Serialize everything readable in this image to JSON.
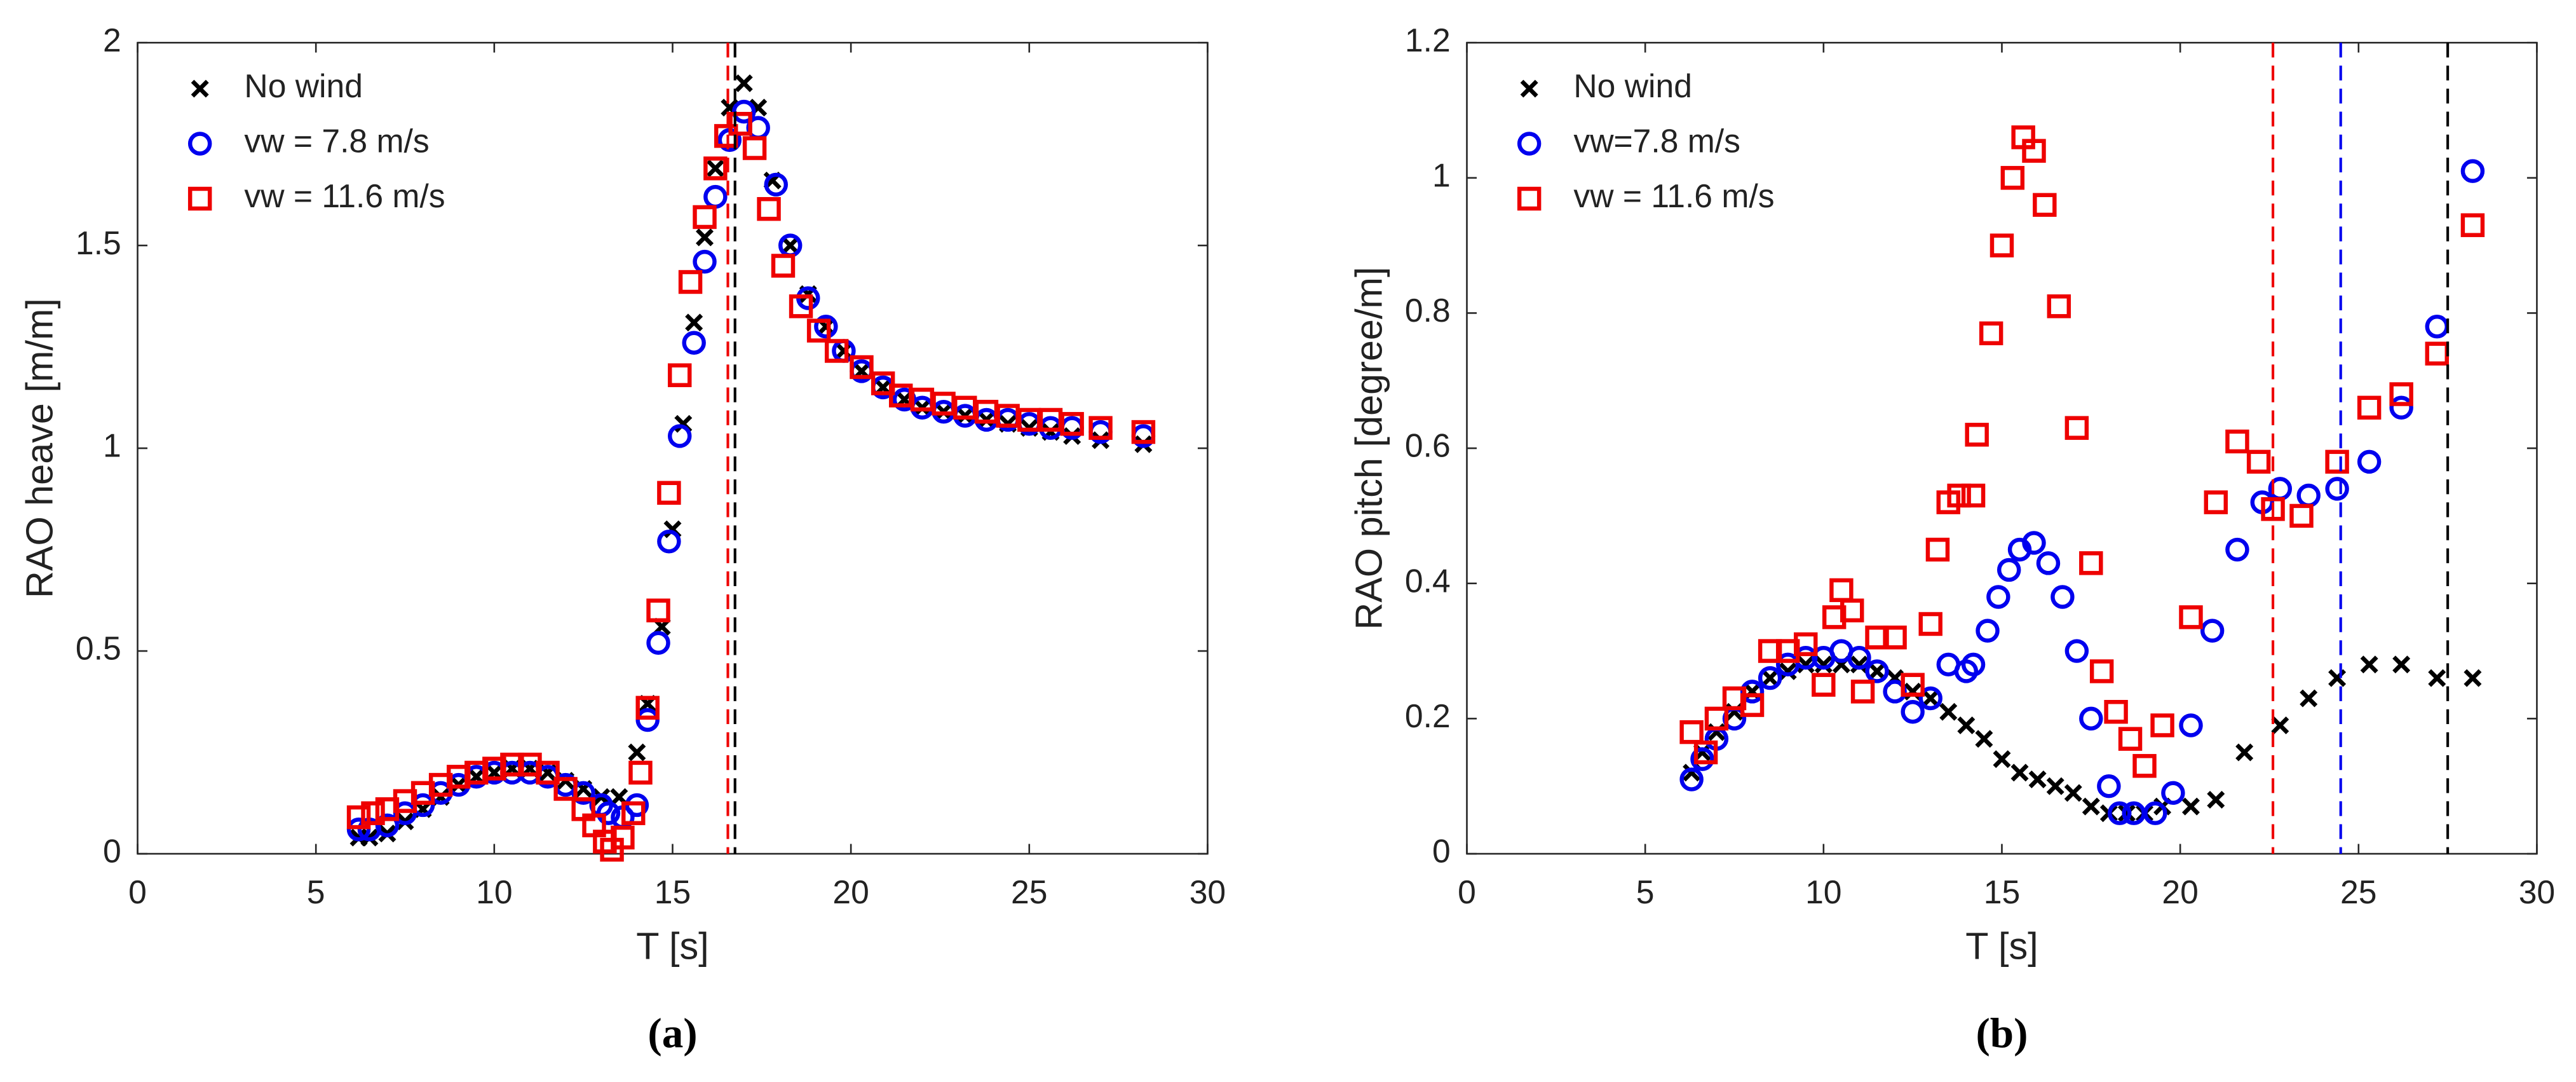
{
  "chart_data": [
    {
      "type": "scatter",
      "caption": "(a)",
      "x_label": "T [s]",
      "y_label": "RAO heave [m/m]",
      "xlim": [
        0,
        30
      ],
      "xticks": [
        0,
        5,
        10,
        15,
        20,
        25,
        30
      ],
      "ylim": [
        0,
        2
      ],
      "yticks": [
        0,
        0.5,
        1,
        1.5,
        2
      ],
      "legend": "upper-left",
      "series": [
        {
          "name": "No wind",
          "color": "#000000",
          "marker": "x",
          "x": [
            6.2,
            6.5,
            7,
            7.5,
            8,
            8.5,
            9,
            9.5,
            10,
            10.5,
            11,
            11.5,
            12,
            12.5,
            13,
            13.5,
            14,
            14.3,
            14.7,
            15,
            15.3,
            15.6,
            15.9,
            16.2,
            16.6,
            17,
            17.4,
            17.8,
            18.3,
            18.8,
            19.3,
            19.8,
            20.3,
            20.9,
            21.5,
            22,
            22.6,
            23.2,
            23.8,
            24.4,
            25,
            25.6,
            26.2,
            27,
            28.2
          ],
          "values": [
            0.04,
            0.04,
            0.05,
            0.08,
            0.11,
            0.14,
            0.17,
            0.19,
            0.2,
            0.21,
            0.21,
            0.2,
            0.18,
            0.16,
            0.14,
            0.14,
            0.25,
            0.37,
            0.56,
            0.8,
            1.06,
            1.31,
            1.52,
            1.69,
            1.84,
            1.9,
            1.84,
            1.66,
            1.5,
            1.38,
            1.3,
            1.24,
            1.19,
            1.15,
            1.12,
            1.1,
            1.09,
            1.08,
            1.07,
            1.06,
            1.05,
            1.04,
            1.03,
            1.02,
            1.01
          ]
        },
        {
          "name": "vw = 7.8  m/s",
          "color": "#0000ee",
          "marker": "o",
          "x": [
            6.2,
            6.5,
            7,
            7.5,
            8,
            8.5,
            9,
            9.5,
            10,
            10.5,
            11,
            11.5,
            12,
            12.5,
            13,
            13.2,
            13.6,
            14,
            14.3,
            14.6,
            14.9,
            15.2,
            15.6,
            15.9,
            16.2,
            16.6,
            17,
            17.4,
            17.9,
            18.3,
            18.8,
            19.3,
            19.8,
            20.3,
            20.9,
            21.5,
            22,
            22.6,
            23.2,
            23.8,
            24.4,
            25,
            25.6,
            26.2,
            27,
            28.2
          ],
          "values": [
            0.06,
            0.06,
            0.07,
            0.1,
            0.12,
            0.15,
            0.17,
            0.19,
            0.2,
            0.2,
            0.2,
            0.19,
            0.17,
            0.15,
            0.12,
            0.1,
            0.09,
            0.12,
            0.33,
            0.52,
            0.77,
            1.03,
            1.26,
            1.46,
            1.62,
            1.76,
            1.83,
            1.79,
            1.65,
            1.5,
            1.37,
            1.3,
            1.24,
            1.19,
            1.15,
            1.12,
            1.1,
            1.09,
            1.08,
            1.07,
            1.07,
            1.06,
            1.05,
            1.05,
            1.04,
            1.03
          ]
        },
        {
          "name": "vw = 11.6 m/s",
          "color": "#ee0000",
          "marker": "s",
          "x": [
            6.2,
            6.6,
            7,
            7.5,
            8,
            8.5,
            9,
            9.5,
            10,
            10.5,
            11,
            11.5,
            12,
            12.5,
            12.8,
            13.1,
            13.3,
            13.6,
            13.9,
            14.1,
            14.3,
            14.6,
            14.9,
            15.2,
            15.5,
            15.9,
            16.2,
            16.5,
            16.9,
            17.3,
            17.7,
            18.1,
            18.6,
            19.1,
            19.6,
            20.3,
            20.9,
            21.4,
            22,
            22.6,
            23.2,
            23.8,
            24.4,
            25,
            25.6,
            26.2,
            27,
            28.2
          ],
          "values": [
            0.09,
            0.1,
            0.11,
            0.13,
            0.15,
            0.17,
            0.19,
            0.2,
            0.21,
            0.22,
            0.22,
            0.2,
            0.16,
            0.11,
            0.07,
            0.03,
            0.01,
            0.04,
            0.1,
            0.2,
            0.36,
            0.6,
            0.89,
            1.18,
            1.41,
            1.57,
            1.69,
            1.77,
            1.8,
            1.74,
            1.59,
            1.45,
            1.35,
            1.29,
            1.24,
            1.2,
            1.16,
            1.13,
            1.12,
            1.11,
            1.1,
            1.09,
            1.08,
            1.07,
            1.07,
            1.06,
            1.05,
            1.04
          ]
        }
      ],
      "vlines": [
        {
          "x": 16.55,
          "color": "#ee0000"
        },
        {
          "x": 16.75,
          "color": "#000000"
        }
      ]
    },
    {
      "type": "scatter",
      "caption": "(b)",
      "x_label": "T [s]",
      "y_label": "RAO pitch [degree/m]",
      "xlim": [
        0,
        30
      ],
      "xticks": [
        0,
        5,
        10,
        15,
        20,
        25,
        30
      ],
      "ylim": [
        0,
        1.2
      ],
      "yticks": [
        0,
        0.2,
        0.4,
        0.6,
        0.8,
        1,
        1.2
      ],
      "legend": "upper-left",
      "series": [
        {
          "name": "No wind",
          "color": "#000000",
          "marker": "x",
          "x": [
            6.3,
            6.6,
            7,
            7.5,
            8,
            8.5,
            9,
            9.5,
            10,
            10.5,
            11,
            11.5,
            12,
            12.5,
            13,
            13.5,
            14,
            14.5,
            15,
            15.5,
            16,
            16.5,
            17,
            17.5,
            18,
            18.5,
            19,
            19.5,
            20.3,
            21,
            21.8,
            22.8,
            23.6,
            24.4,
            25.3,
            26.2,
            27.2,
            28.2
          ],
          "values": [
            0.12,
            0.15,
            0.18,
            0.21,
            0.24,
            0.26,
            0.27,
            0.28,
            0.28,
            0.28,
            0.28,
            0.27,
            0.26,
            0.24,
            0.23,
            0.21,
            0.19,
            0.17,
            0.14,
            0.12,
            0.11,
            0.1,
            0.09,
            0.07,
            0.06,
            0.06,
            0.06,
            0.07,
            0.07,
            0.08,
            0.15,
            0.19,
            0.23,
            0.26,
            0.28,
            0.28,
            0.26,
            0.26
          ]
        },
        {
          "name": "vw=7.8 m/s",
          "color": "#0000ee",
          "marker": "o",
          "x": [
            6.3,
            6.6,
            7,
            7.5,
            8,
            8.5,
            9,
            9.5,
            10,
            10.5,
            11,
            11.5,
            12,
            12.5,
            13,
            13.5,
            14,
            14.2,
            14.6,
            14.9,
            15.2,
            15.5,
            15.9,
            16.3,
            16.7,
            17.1,
            17.5,
            18,
            18.3,
            18.7,
            19.3,
            19.8,
            20.3,
            20.9,
            21.6,
            22.3,
            22.8,
            23.6,
            24.4,
            25.3,
            26.2,
            27.2,
            28.2
          ],
          "values": [
            0.11,
            0.14,
            0.17,
            0.2,
            0.24,
            0.26,
            0.28,
            0.29,
            0.29,
            0.3,
            0.29,
            0.27,
            0.24,
            0.21,
            0.23,
            0.28,
            0.27,
            0.28,
            0.33,
            0.38,
            0.42,
            0.45,
            0.46,
            0.43,
            0.38,
            0.3,
            0.2,
            0.1,
            0.06,
            0.06,
            0.06,
            0.09,
            0.19,
            0.33,
            0.45,
            0.52,
            0.54,
            0.53,
            0.54,
            0.58,
            0.66,
            0.78,
            1.01
          ]
        },
        {
          "name": "vw = 11.6 m/s",
          "color": "#ee0000",
          "marker": "s",
          "x": [
            6.3,
            6.7,
            7,
            7.5,
            8,
            8.5,
            9,
            9.5,
            10,
            10.3,
            10.5,
            10.8,
            11.1,
            11.5,
            12,
            12.5,
            13,
            13.2,
            13.5,
            13.8,
            14.2,
            14.3,
            14.7,
            15,
            15.3,
            15.6,
            15.9,
            16.2,
            16.6,
            17.1,
            17.5,
            17.8,
            18.2,
            18.6,
            19,
            19.5,
            20.3,
            21,
            21.6,
            22.2,
            22.6,
            23.4,
            24.4,
            25.3,
            26.2,
            27.2,
            28.2
          ],
          "values": [
            0.18,
            0.15,
            0.2,
            0.23,
            0.22,
            0.3,
            0.3,
            0.31,
            0.25,
            0.35,
            0.39,
            0.36,
            0.24,
            0.32,
            0.32,
            0.25,
            0.34,
            0.45,
            0.52,
            0.53,
            0.53,
            0.62,
            0.77,
            0.9,
            1.0,
            1.06,
            1.04,
            0.96,
            0.81,
            0.63,
            0.43,
            0.27,
            0.21,
            0.17,
            0.13,
            0.19,
            0.35,
            0.52,
            0.61,
            0.58,
            0.51,
            0.5,
            0.58,
            0.66,
            0.68,
            0.74,
            0.93
          ]
        }
      ],
      "vlines": [
        {
          "x": 22.6,
          "color": "#ee0000"
        },
        {
          "x": 24.5,
          "color": "#0000ee"
        },
        {
          "x": 27.5,
          "color": "#000000"
        }
      ]
    }
  ]
}
